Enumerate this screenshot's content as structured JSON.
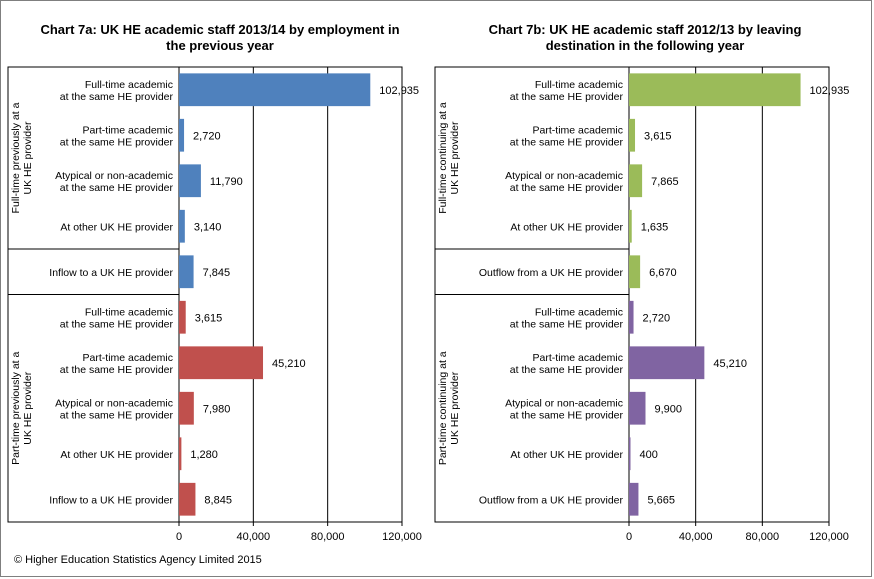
{
  "footer": "© Higher Education Statistics Agency Limited 2015",
  "chart_data": [
    {
      "type": "bar",
      "orientation": "horizontal",
      "title": "Chart 7a: UK HE  academic staff 2013/14  by employment in the previous year",
      "xlim": [
        0,
        120000
      ],
      "x_ticks": [
        0,
        40000,
        80000,
        120000
      ],
      "x_tick_labels": [
        "0",
        "40,000",
        "80,000",
        "120,000"
      ],
      "grid": "vertical",
      "group_labels": [
        "Full-time previously at a UK HE provider",
        "Part-time previously at a UK HE provider"
      ],
      "categories": [
        "Full-time academic\nat the same HE provider",
        "Part-time academic\nat the same HE provider",
        "Atypical or non-academic\nat the same HE provider",
        "At other UK HE provider",
        "Inflow to a UK HE provider",
        "Full-time academic\nat the same HE provider",
        "Part-time academic\nat the same HE provider",
        "Atypical or non-academic\nat the same HE provider",
        "At other UK HE provider",
        "Inflow to a UK HE provider"
      ],
      "values": [
        102935,
        2720,
        11790,
        3140,
        7845,
        3615,
        45210,
        7980,
        1280,
        8845
      ],
      "value_labels": [
        "102,935",
        "2,720",
        "11,790",
        "3,140",
        "7,845",
        "3,615",
        "45,210",
        "7,980",
        "1,280",
        "8,845"
      ],
      "colors": [
        "#4f81bd",
        "#4f81bd",
        "#4f81bd",
        "#4f81bd",
        "#4f81bd",
        "#c0504d",
        "#c0504d",
        "#c0504d",
        "#c0504d",
        "#c0504d"
      ]
    },
    {
      "type": "bar",
      "orientation": "horizontal",
      "title": "Chart 7b: UK HE  academic staff 2012/13  by leaving destination in the following year",
      "xlim": [
        0,
        120000
      ],
      "x_ticks": [
        0,
        40000,
        80000,
        120000
      ],
      "x_tick_labels": [
        "0",
        "40,000",
        "80,000",
        "120,000"
      ],
      "grid": "vertical",
      "group_labels": [
        "Full-time continuing at a UK HE provider",
        "Part-time continuing at a UK HE provider"
      ],
      "categories": [
        "Full-time academic\nat the same HE provider",
        "Part-time academic\nat the same HE provider",
        "Atypical or non-academic\nat the same HE provider",
        "At other UK HE provider",
        "Outflow from a UK HE provider",
        "Full-time academic\nat the same HE provider",
        "Part-time academic\nat the same HE provider",
        "Atypical or non-academic\nat the same HE provider",
        "At other UK HE provider",
        "Outflow from a UK HE provider"
      ],
      "values": [
        102935,
        3615,
        7865,
        1635,
        6670,
        2720,
        45210,
        9900,
        400,
        5665
      ],
      "value_labels": [
        "102,935",
        "3,615",
        "7,865",
        "1,635",
        "6,670",
        "2,720",
        "45,210",
        "9,900",
        "400",
        "5,665"
      ],
      "colors": [
        "#9bbb59",
        "#9bbb59",
        "#9bbb59",
        "#9bbb59",
        "#9bbb59",
        "#8064a2",
        "#8064a2",
        "#8064a2",
        "#8064a2",
        "#8064a2"
      ]
    }
  ]
}
